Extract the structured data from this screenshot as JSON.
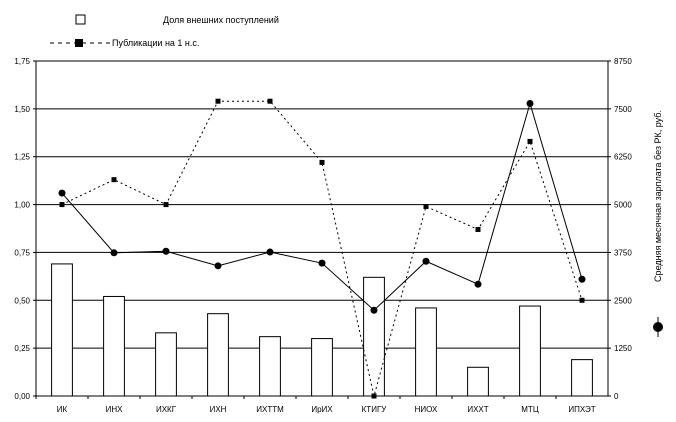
{
  "chart_data": {
    "type": "bar",
    "categories": [
      "ИК",
      "ИНХ",
      "ИХКГ",
      "ИХН",
      "ИХТТМ",
      "ИрИХ",
      "КТИГУ",
      "НИОХ",
      "ИХХТ",
      "МТЦ",
      "ИПХЭТ"
    ],
    "series": [
      {
        "name": "Доля внешних поступлений",
        "type": "bar",
        "axis": "left",
        "values": [
          0.69,
          0.52,
          0.33,
          0.43,
          0.31,
          0.3,
          0.62,
          0.46,
          0.15,
          0.47,
          0.19
        ],
        "color": "#ffffff"
      },
      {
        "name": "Публикации на 1 н.с.",
        "type": "line",
        "axis": "left",
        "line_style": "dotted",
        "marker": "square",
        "values": [
          1.0,
          1.13,
          1.0,
          1.54,
          1.54,
          1.22,
          0.0,
          0.99,
          0.87,
          1.33,
          0.5
        ],
        "color": "#000000"
      },
      {
        "name": "",
        "type": "line",
        "axis": "right",
        "line_style": "solid",
        "marker": "circle",
        "values": [
          5300,
          3740,
          3780,
          3400,
          3760,
          3470,
          2240,
          3520,
          2920,
          7640,
          3050
        ],
        "color": "#000000"
      }
    ],
    "left_axis": {
      "ylim": [
        0,
        1.75
      ],
      "ticks": [
        "0,00",
        "0,25",
        "0,50",
        "0,75",
        "1,00",
        "1,25",
        "1,50",
        "1,75"
      ]
    },
    "right_axis": {
      "label": "Средняя месячная зарплата без РК, руб.",
      "ylim": [
        0,
        8750
      ],
      "ticks": [
        "0",
        "1250",
        "2500",
        "3750",
        "5000",
        "6250",
        "7500",
        "8750"
      ]
    },
    "grid": true,
    "legend_position": "top-left"
  }
}
